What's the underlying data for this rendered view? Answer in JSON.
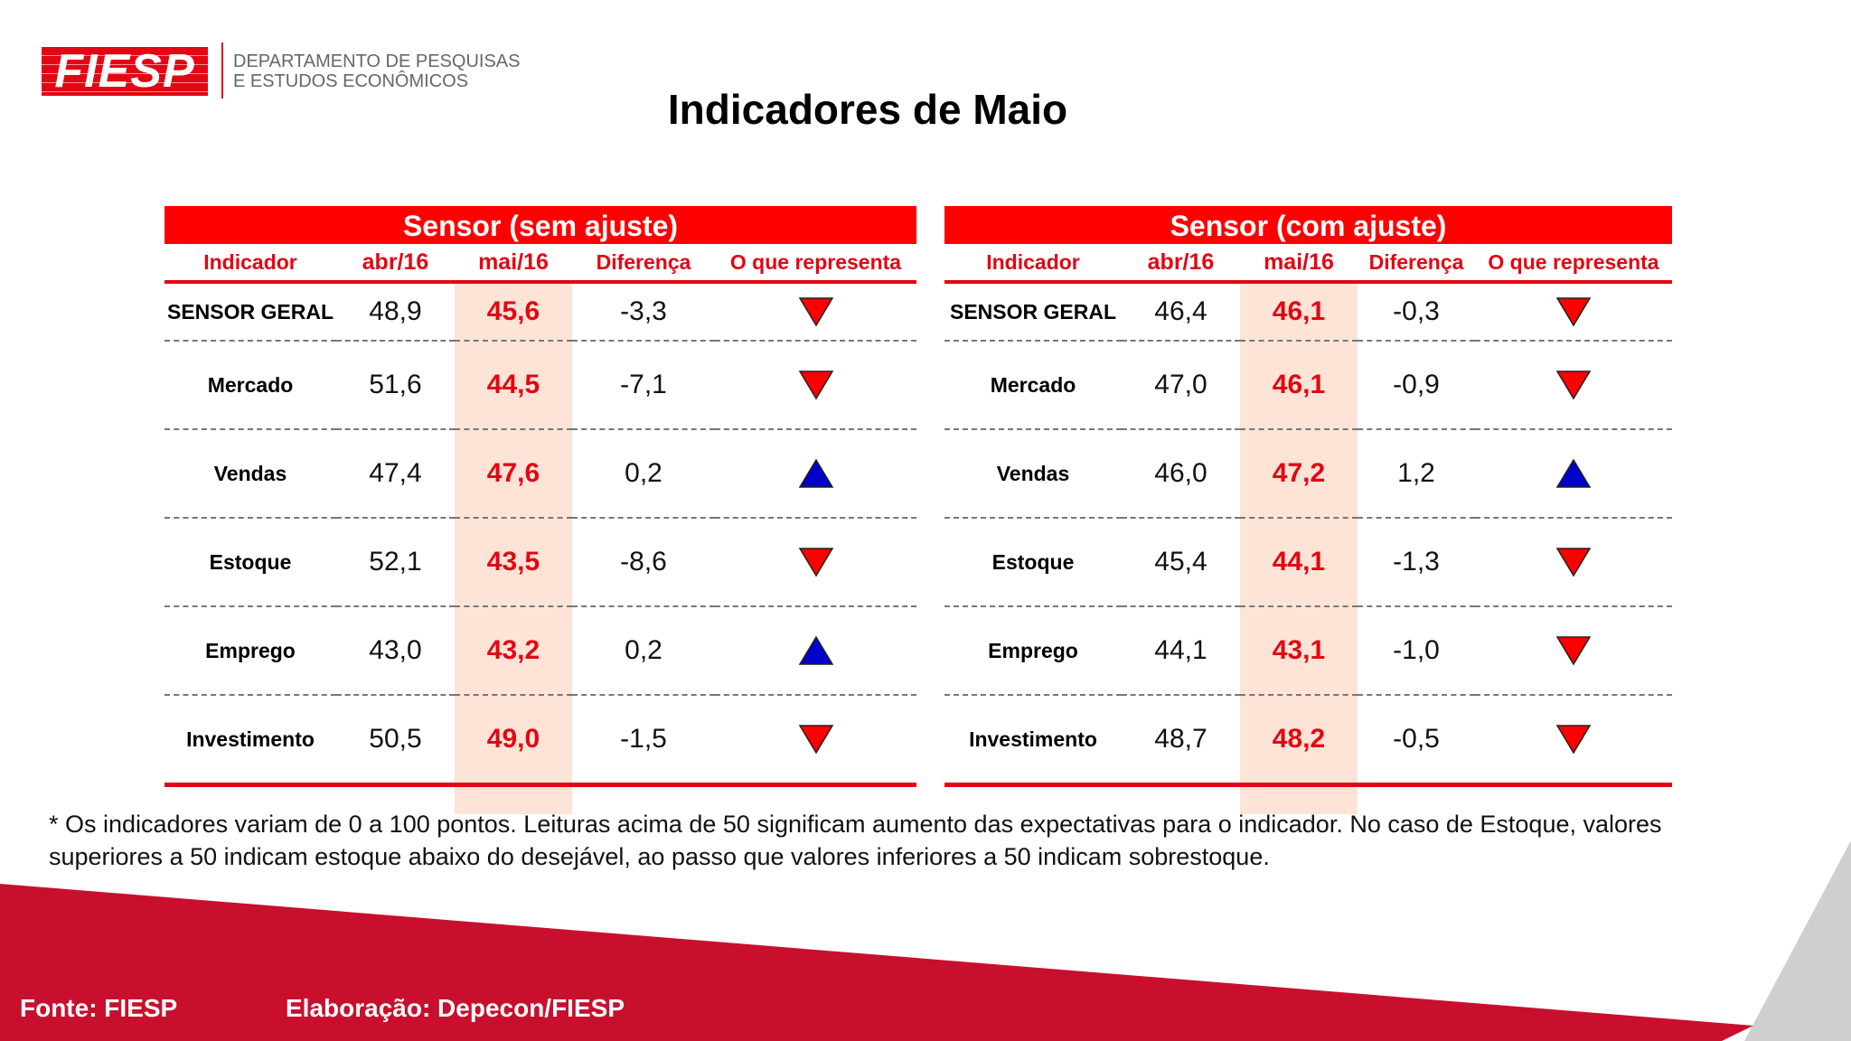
{
  "logo": {
    "text": "FIESP",
    "dept_line1": "DEPARTAMENTO DE PESQUISAS",
    "dept_line2": "E ESTUDOS ECONÔMICOS"
  },
  "title": "Indicadores de Maio",
  "columns": [
    "Indicador",
    "abr/16",
    "mai/16",
    "Diferença",
    "O que representa"
  ],
  "colors": {
    "accent": "#e30613",
    "title_bar": "#ff0000",
    "highlight": "#fde4d7",
    "down": "#ff0000",
    "up": "#0000cc",
    "band": "#c8102e"
  },
  "tables": [
    {
      "title": "Sensor (sem ajuste)",
      "rows": [
        {
          "indicador": "SENSOR GERAL",
          "abr": "48,9",
          "mai": "45,6",
          "dif": "-3,3",
          "trend": "down"
        },
        {
          "indicador": "Mercado",
          "abr": "51,6",
          "mai": "44,5",
          "dif": "-7,1",
          "trend": "down"
        },
        {
          "indicador": "Vendas",
          "abr": "47,4",
          "mai": "47,6",
          "dif": "0,2",
          "trend": "up"
        },
        {
          "indicador": "Estoque",
          "abr": "52,1",
          "mai": "43,5",
          "dif": "-8,6",
          "trend": "down"
        },
        {
          "indicador": "Emprego",
          "abr": "43,0",
          "mai": "43,2",
          "dif": "0,2",
          "trend": "up"
        },
        {
          "indicador": "Investimento",
          "abr": "50,5",
          "mai": "49,0",
          "dif": "-1,5",
          "trend": "down"
        }
      ]
    },
    {
      "title": "Sensor (com ajuste)",
      "rows": [
        {
          "indicador": "SENSOR GERAL",
          "abr": "46,4",
          "mai": "46,1",
          "dif": "-0,3",
          "trend": "down"
        },
        {
          "indicador": "Mercado",
          "abr": "47,0",
          "mai": "46,1",
          "dif": "-0,9",
          "trend": "down"
        },
        {
          "indicador": "Vendas",
          "abr": "46,0",
          "mai": "47,2",
          "dif": "1,2",
          "trend": "up"
        },
        {
          "indicador": "Estoque",
          "abr": "45,4",
          "mai": "44,1",
          "dif": "-1,3",
          "trend": "down"
        },
        {
          "indicador": "Emprego",
          "abr": "44,1",
          "mai": "43,1",
          "dif": "-1,0",
          "trend": "down"
        },
        {
          "indicador": "Investimento",
          "abr": "48,7",
          "mai": "48,2",
          "dif": "-0,5",
          "trend": "down"
        }
      ]
    }
  ],
  "footnote": "* Os indicadores variam de 0 a 100 pontos. Leituras acima de 50 significam aumento das expectativas para o indicador. No caso de Estoque, valores superiores a 50 indicam estoque abaixo do desejável, ao passo que valores inferiores a 50 indicam sobrestoque.",
  "footer": {
    "fonte": "Fonte: FIESP",
    "elaboracao": "Elaboração: Depecon/FIESP"
  }
}
